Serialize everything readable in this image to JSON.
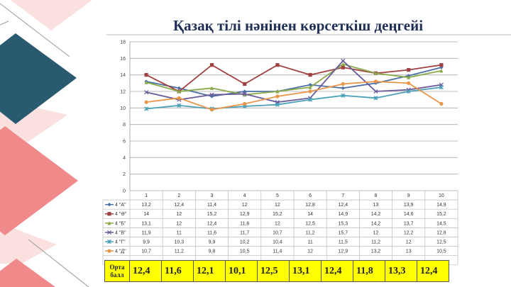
{
  "title": "Қазақ тілі нәнінен көрсеткіш деңгейі",
  "colors": {
    "teal": "#2a5a70",
    "salmon": "#f08a8a",
    "light_pink": "#fbe0e0",
    "avg_row": "#ffff00"
  },
  "chart_data": {
    "type": "line",
    "title": "",
    "categories": [
      "1",
      "2",
      "3",
      "4",
      "5",
      "6",
      "7",
      "8",
      "9",
      "10"
    ],
    "ylim": [
      0,
      18
    ],
    "yticks": [
      "0",
      "2",
      "4",
      "6",
      "8",
      "10",
      "12",
      "14",
      "16",
      "18"
    ],
    "grid": true,
    "legend": "data-table",
    "series": [
      {
        "name": "4 \"А\"",
        "color": "#4a6fa5",
        "marker": "diamond",
        "values": [
          13.2,
          12.4,
          11.4,
          12,
          12,
          12.8,
          12.4,
          13,
          13.9,
          14.9
        ],
        "labels": [
          "13,2",
          "12,4",
          "11,4",
          "12",
          "12",
          "12,8",
          "12,4",
          "13",
          "13,9",
          "14,9"
        ]
      },
      {
        "name": "4 \"Ә\"",
        "color": "#a04040",
        "marker": "square",
        "values": [
          14,
          12,
          15.2,
          12.9,
          15.2,
          14,
          14.9,
          14.2,
          14.6,
          15.2
        ],
        "labels": [
          "14",
          "12",
          "15,2",
          "12,9",
          "15,2",
          "14",
          "14,9",
          "14,2",
          "14,6",
          "15,2"
        ]
      },
      {
        "name": "4 \"Б\"",
        "color": "#8aaa4a",
        "marker": "triangle",
        "values": [
          13.1,
          12,
          12.4,
          11.6,
          12,
          12.5,
          15.3,
          14.2,
          13.7,
          14.5
        ],
        "labels": [
          "13,1",
          "12",
          "12,4",
          "11,6",
          "12",
          "12,5",
          "15,3",
          "14,2",
          "13,7",
          "14,5"
        ]
      },
      {
        "name": "4 \"В\"",
        "color": "#6a5a9a",
        "marker": "x",
        "values": [
          11.9,
          11,
          11.6,
          11.7,
          10.7,
          11.2,
          15.7,
          12,
          12.2,
          12.8
        ],
        "labels": [
          "11,9",
          "11",
          "11,6",
          "11,7",
          "10,7",
          "11,2",
          "15,7",
          "12",
          "12,2",
          "12,8"
        ]
      },
      {
        "name": "4 \"Г\"",
        "color": "#4aa0b8",
        "marker": "star",
        "values": [
          9.9,
          10.3,
          9.9,
          10.2,
          10.4,
          11,
          11.5,
          11.2,
          12,
          12.5
        ],
        "labels": [
          "9,9",
          "10,3",
          "9,9",
          "10,2",
          "10,4",
          "11",
          "11,5",
          "11,2",
          "12",
          "12,5"
        ]
      },
      {
        "name": "4 \"Д\"",
        "color": "#e8964a",
        "marker": "circle",
        "values": [
          10.7,
          11.2,
          9.8,
          10.5,
          11.4,
          12,
          12.9,
          13.2,
          13,
          10.5
        ],
        "labels": [
          "10,7",
          "11,2",
          "9,8",
          "10,5",
          "11,4",
          "12",
          "12,9",
          "13,2",
          "13",
          "10,5"
        ]
      }
    ]
  },
  "average": {
    "label_line1": "Орта",
    "label_line2": "балл",
    "values": [
      "12,4",
      "11,6",
      "12,1",
      "10,1",
      "12,5",
      "13,1",
      "12,4",
      "11,8",
      "13,3",
      "12,4"
    ]
  }
}
